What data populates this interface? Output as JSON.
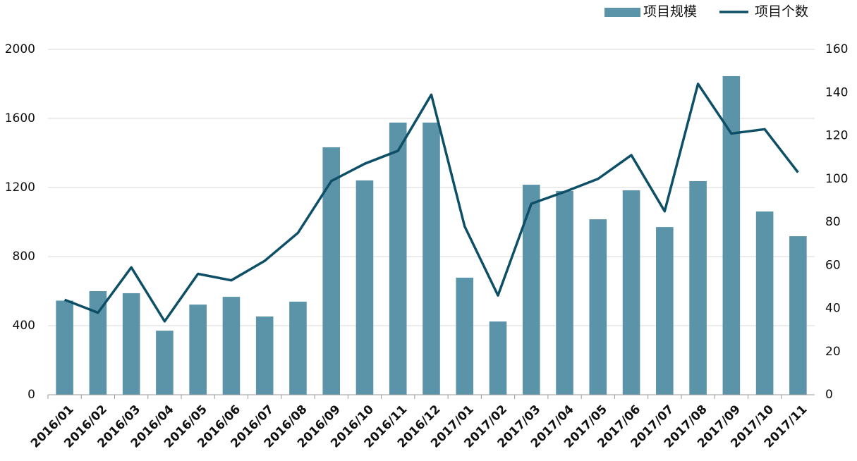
{
  "chart_data": {
    "type": "bar_line",
    "categories": [
      "2016/01",
      "2016/02",
      "2016/03",
      "2016/04",
      "2016/05",
      "2016/06",
      "2016/07",
      "2016/08",
      "2016/09",
      "2016/10",
      "2016/11",
      "2016/12",
      "2017/01",
      "2017/02",
      "2017/03",
      "2017/04",
      "2017/05",
      "2017/06",
      "2017/07",
      "2017/08",
      "2017/09",
      "2017/10",
      "2017/11"
    ],
    "series": [
      {
        "name": "项目规模",
        "type": "bar",
        "color": "#5b93a8",
        "axis": "y",
        "values": [
          545,
          600,
          588,
          371,
          522,
          567,
          453,
          539,
          1433,
          1241,
          1576,
          1576,
          678,
          424,
          1216,
          1180,
          1016,
          1184,
          971,
          1237,
          1845,
          1061,
          918
        ]
      },
      {
        "name": "项目个数",
        "type": "line",
        "color": "#0d4f66",
        "axis": "y2",
        "values": [
          44,
          38,
          59,
          34,
          56,
          53,
          62,
          75,
          99,
          107,
          113,
          139,
          78,
          46,
          88.5,
          94,
          100,
          111,
          85,
          144,
          121,
          123,
          103
        ]
      }
    ],
    "ylim": [
      0,
      2000
    ],
    "yticks": [
      0,
      400,
      800,
      1200,
      1600,
      2000
    ],
    "y2lim": [
      0,
      160
    ],
    "y2ticks": [
      0,
      20,
      40,
      60,
      80,
      100,
      120,
      140,
      160
    ],
    "grid": true,
    "legend": "top-right"
  }
}
